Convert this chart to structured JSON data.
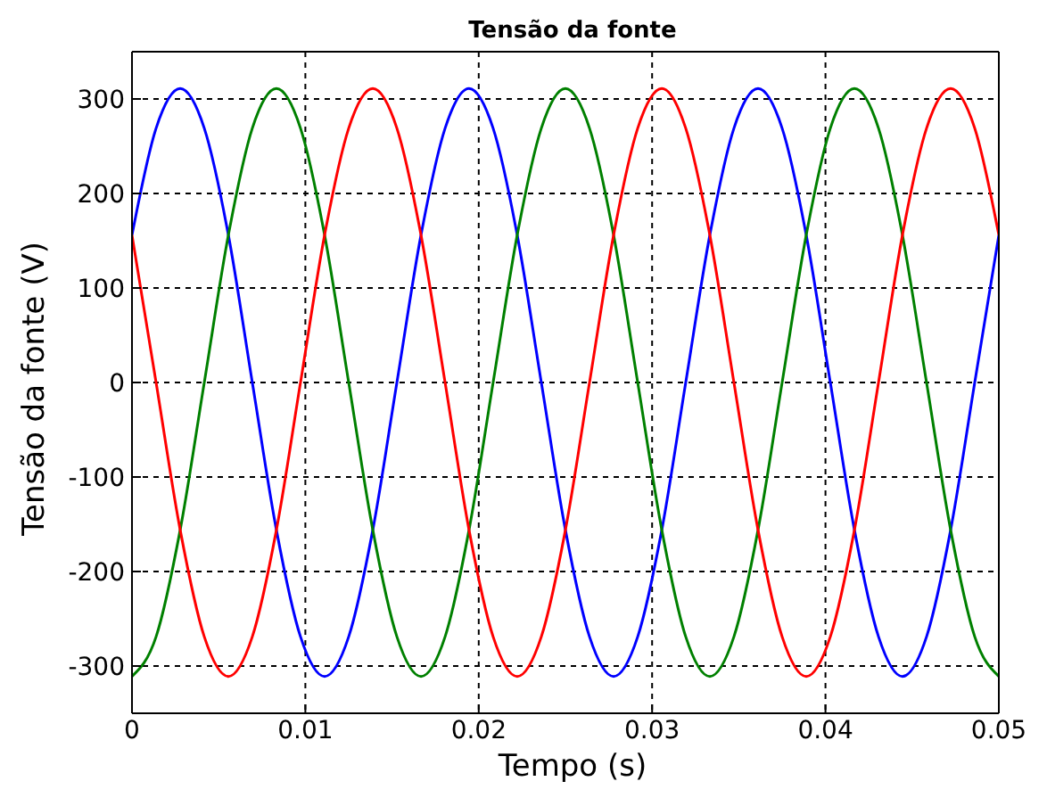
{
  "chart_data": {
    "type": "line",
    "title": "Tensão da fonte",
    "xlabel": "Tempo (s)",
    "ylabel": "Tensão da fonte (V)",
    "x": [
      0,
      0.00139,
      0.00278,
      0.00417,
      0.00556,
      0.00694,
      0.00833,
      0.00972,
      0.01111,
      0.0125,
      0.01389,
      0.01528,
      0.01667,
      0.01806,
      0.01944,
      0.02083,
      0.02222,
      0.02361,
      0.025,
      0.02639,
      0.02778,
      0.02917,
      0.03056,
      0.03194,
      0.03333,
      0.03472,
      0.03611,
      0.0375,
      0.03889,
      0.04028,
      0.04167,
      0.04306,
      0.04444,
      0.04583,
      0.04722,
      0.04861,
      0.05
    ],
    "series": [
      {
        "color": "#0000ff",
        "values": [
          156,
          269,
          311,
          269,
          156,
          0,
          -156,
          -269,
          -311,
          -269,
          -156,
          0,
          156,
          269,
          311,
          269,
          156,
          0,
          -156,
          -269,
          -311,
          -269,
          -156,
          0,
          156,
          269,
          311,
          269,
          156,
          0,
          -156,
          -269,
          -311,
          -269,
          -156,
          0,
          156
        ]
      },
      {
        "color": "#008000",
        "values": [
          -311,
          -269,
          -156,
          0,
          156,
          269,
          311,
          269,
          156,
          0,
          -156,
          -269,
          -311,
          -269,
          -156,
          0,
          156,
          269,
          311,
          269,
          156,
          0,
          -156,
          -269,
          -311,
          -269,
          -156,
          0,
          156,
          269,
          311,
          269,
          156,
          0,
          -156,
          -269,
          -311
        ]
      },
      {
        "color": "#ff0000",
        "values": [
          156,
          0,
          -156,
          -269,
          -311,
          -269,
          -156,
          0,
          156,
          269,
          311,
          269,
          156,
          0,
          -156,
          -269,
          -311,
          -269,
          -156,
          0,
          156,
          269,
          311,
          269,
          156,
          0,
          -156,
          -269,
          -311,
          -269,
          -156,
          0,
          156,
          269,
          311,
          269,
          156
        ]
      }
    ],
    "xlim": [
      0,
      0.05
    ],
    "xticks": [
      0,
      0.01,
      0.02,
      0.03,
      0.04,
      0.05
    ],
    "ylim": [
      -350,
      350
    ],
    "yticks": [
      -300,
      -200,
      -100,
      0,
      100,
      200,
      300
    ],
    "grid": true,
    "marker": "none",
    "line_style": "solid"
  }
}
